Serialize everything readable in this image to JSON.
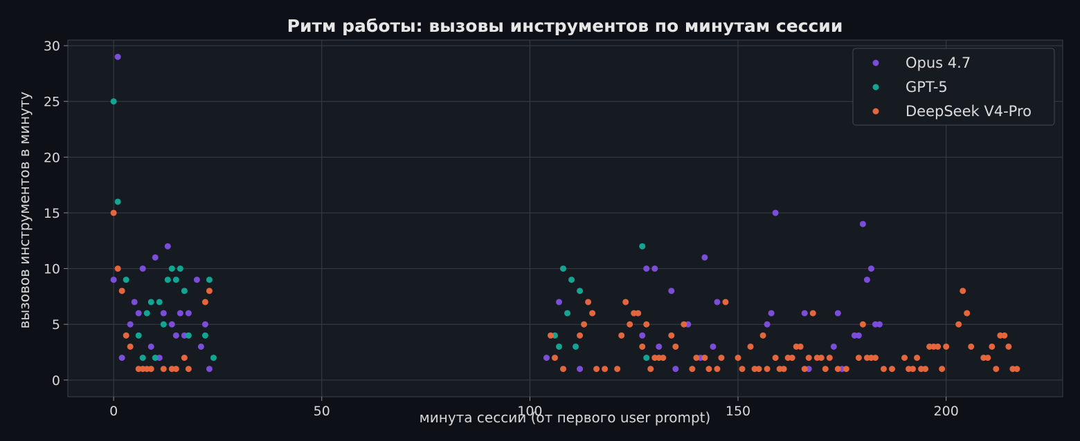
{
  "chart_data": {
    "type": "scatter",
    "title": "Ритм работы: вызовы инструментов по минутам сессии",
    "xlabel": "минута сессии (от первого user prompt)",
    "ylabel": "вызовов инструментов в минуту",
    "xlim": [
      -11,
      228
    ],
    "ylim": [
      -1.5,
      30.5
    ],
    "xticks": [
      0,
      50,
      100,
      150,
      200
    ],
    "yticks": [
      0,
      5,
      10,
      15,
      20,
      25,
      30
    ],
    "grid": true,
    "legend_position": "top-right",
    "series": [
      {
        "name": "Opus 4.7",
        "color": "#7c4ddb",
        "points": [
          [
            0,
            9
          ],
          [
            1,
            29
          ],
          [
            2,
            2
          ],
          [
            4,
            5
          ],
          [
            5,
            7
          ],
          [
            6,
            6
          ],
          [
            7,
            10
          ],
          [
            9,
            3
          ],
          [
            10,
            11
          ],
          [
            11,
            2
          ],
          [
            12,
            6
          ],
          [
            13,
            12
          ],
          [
            14,
            5
          ],
          [
            15,
            4
          ],
          [
            16,
            6
          ],
          [
            17,
            4
          ],
          [
            18,
            6
          ],
          [
            20,
            9
          ],
          [
            21,
            3
          ],
          [
            22,
            5
          ],
          [
            23,
            1
          ],
          [
            104,
            2
          ],
          [
            107,
            7
          ],
          [
            112,
            1
          ],
          [
            127,
            4
          ],
          [
            128,
            10
          ],
          [
            130,
            10
          ],
          [
            131,
            3
          ],
          [
            134,
            8
          ],
          [
            135,
            1
          ],
          [
            138,
            5
          ],
          [
            141,
            2
          ],
          [
            142,
            11
          ],
          [
            144,
            3
          ],
          [
            145,
            7
          ],
          [
            157,
            5
          ],
          [
            158,
            6
          ],
          [
            159,
            15
          ],
          [
            166,
            6
          ],
          [
            167,
            1
          ],
          [
            173,
            3
          ],
          [
            174,
            6
          ],
          [
            175,
            1
          ],
          [
            178,
            4
          ],
          [
            179,
            4
          ],
          [
            180,
            14
          ],
          [
            181,
            9
          ],
          [
            182,
            10
          ],
          [
            183,
            5
          ],
          [
            184,
            5
          ]
        ]
      },
      {
        "name": "GPT-5",
        "color": "#12a594",
        "points": [
          [
            0,
            25
          ],
          [
            1,
            16
          ],
          [
            3,
            9
          ],
          [
            6,
            4
          ],
          [
            7,
            2
          ],
          [
            8,
            6
          ],
          [
            9,
            7
          ],
          [
            10,
            2
          ],
          [
            11,
            7
          ],
          [
            12,
            5
          ],
          [
            13,
            9
          ],
          [
            14,
            10
          ],
          [
            15,
            9
          ],
          [
            16,
            10
          ],
          [
            17,
            8
          ],
          [
            18,
            4
          ],
          [
            22,
            4
          ],
          [
            23,
            9
          ],
          [
            24,
            2
          ],
          [
            106,
            4
          ],
          [
            107,
            3
          ],
          [
            108,
            10
          ],
          [
            109,
            6
          ],
          [
            110,
            9
          ],
          [
            111,
            3
          ],
          [
            112,
            8
          ],
          [
            127,
            12
          ],
          [
            128,
            2
          ]
        ]
      },
      {
        "name": "DeepSeek V4-Pro",
        "color": "#e5663c",
        "points": [
          [
            0,
            15
          ],
          [
            1,
            10
          ],
          [
            2,
            8
          ],
          [
            3,
            4
          ],
          [
            4,
            3
          ],
          [
            6,
            1
          ],
          [
            7,
            1
          ],
          [
            8,
            1
          ],
          [
            9,
            1
          ],
          [
            12,
            1
          ],
          [
            14,
            1
          ],
          [
            15,
            1
          ],
          [
            17,
            2
          ],
          [
            18,
            1
          ],
          [
            22,
            7
          ],
          [
            23,
            8
          ],
          [
            105,
            4
          ],
          [
            106,
            2
          ],
          [
            108,
            1
          ],
          [
            112,
            4
          ],
          [
            113,
            5
          ],
          [
            114,
            7
          ],
          [
            115,
            6
          ],
          [
            116,
            1
          ],
          [
            118,
            1
          ],
          [
            121,
            1
          ],
          [
            122,
            4
          ],
          [
            123,
            7
          ],
          [
            124,
            5
          ],
          [
            125,
            6
          ],
          [
            126,
            6
          ],
          [
            127,
            3
          ],
          [
            128,
            5
          ],
          [
            129,
            1
          ],
          [
            130,
            2
          ],
          [
            131,
            2
          ],
          [
            132,
            2
          ],
          [
            134,
            4
          ],
          [
            135,
            3
          ],
          [
            137,
            5
          ],
          [
            139,
            1
          ],
          [
            140,
            2
          ],
          [
            142,
            2
          ],
          [
            143,
            1
          ],
          [
            145,
            1
          ],
          [
            146,
            2
          ],
          [
            147,
            7
          ],
          [
            150,
            2
          ],
          [
            151,
            1
          ],
          [
            153,
            3
          ],
          [
            154,
            1
          ],
          [
            155,
            1
          ],
          [
            156,
            4
          ],
          [
            157,
            1
          ],
          [
            159,
            2
          ],
          [
            160,
            1
          ],
          [
            161,
            1
          ],
          [
            162,
            2
          ],
          [
            163,
            2
          ],
          [
            164,
            3
          ],
          [
            165,
            3
          ],
          [
            166,
            1
          ],
          [
            167,
            2
          ],
          [
            168,
            6
          ],
          [
            169,
            2
          ],
          [
            170,
            2
          ],
          [
            171,
            1
          ],
          [
            172,
            2
          ],
          [
            174,
            1
          ],
          [
            176,
            1
          ],
          [
            179,
            2
          ],
          [
            180,
            5
          ],
          [
            181,
            2
          ],
          [
            182,
            2
          ],
          [
            183,
            2
          ],
          [
            185,
            1
          ],
          [
            187,
            1
          ],
          [
            190,
            2
          ],
          [
            191,
            1
          ],
          [
            192,
            1
          ],
          [
            193,
            2
          ],
          [
            194,
            1
          ],
          [
            195,
            1
          ],
          [
            196,
            3
          ],
          [
            197,
            3
          ],
          [
            198,
            3
          ],
          [
            199,
            1
          ],
          [
            200,
            3
          ],
          [
            203,
            5
          ],
          [
            204,
            8
          ],
          [
            205,
            6
          ],
          [
            206,
            3
          ],
          [
            209,
            2
          ],
          [
            210,
            2
          ],
          [
            211,
            3
          ],
          [
            212,
            1
          ],
          [
            213,
            4
          ],
          [
            214,
            4
          ],
          [
            215,
            3
          ],
          [
            216,
            1
          ],
          [
            217,
            1
          ]
        ]
      }
    ]
  }
}
